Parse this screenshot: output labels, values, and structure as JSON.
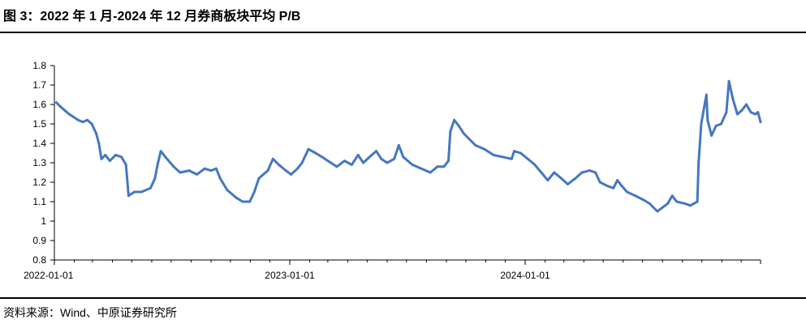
{
  "title": "图 3：2022 年 1 月-2024 年 12 月券商板块平均 P/B",
  "source": "资料来源：Wind、中原证券研究所",
  "colors": {
    "line": "#4677c0",
    "axis": "#000000"
  },
  "chart_data": {
    "type": "line",
    "title": "图 3：2022 年 1 月-2024 年 12 月券商板块平均 P/B",
    "xlabel": "",
    "ylabel": "",
    "ylim": [
      0.8,
      1.8
    ],
    "yticks": [
      "0.8",
      "0.9",
      "1",
      "1.1",
      "1.2",
      "1.3",
      "1.4",
      "1.5",
      "1.6",
      "1.7",
      "1.8"
    ],
    "xticks": [
      {
        "value": "2022-01-01",
        "label": "2022-01-01"
      },
      {
        "value": "2023-01-01",
        "label": "2023-01-01"
      },
      {
        "value": "2024-01-01",
        "label": "2024-01-01"
      }
    ],
    "xlim": [
      "2022-01-01",
      "2024-12-31"
    ],
    "grid": false,
    "series": [
      {
        "name": "",
        "points": [
          [
            "2022-01-04",
            1.61
          ],
          [
            "2022-01-10",
            1.59
          ],
          [
            "2022-01-17",
            1.57
          ],
          [
            "2022-01-24",
            1.55
          ],
          [
            "2022-02-07",
            1.52
          ],
          [
            "2022-02-14",
            1.51
          ],
          [
            "2022-02-21",
            1.52
          ],
          [
            "2022-02-28",
            1.5
          ],
          [
            "2022-03-07",
            1.45
          ],
          [
            "2022-03-11",
            1.4
          ],
          [
            "2022-03-15",
            1.32
          ],
          [
            "2022-03-21",
            1.34
          ],
          [
            "2022-03-28",
            1.31
          ],
          [
            "2022-04-06",
            1.34
          ],
          [
            "2022-04-15",
            1.33
          ],
          [
            "2022-04-22",
            1.29
          ],
          [
            "2022-04-26",
            1.13
          ],
          [
            "2022-05-05",
            1.15
          ],
          [
            "2022-05-16",
            1.15
          ],
          [
            "2022-05-30",
            1.17
          ],
          [
            "2022-06-06",
            1.22
          ],
          [
            "2022-06-10",
            1.29
          ],
          [
            "2022-06-15",
            1.36
          ],
          [
            "2022-06-22",
            1.33
          ],
          [
            "2022-07-05",
            1.28
          ],
          [
            "2022-07-15",
            1.25
          ],
          [
            "2022-07-29",
            1.26
          ],
          [
            "2022-08-10",
            1.24
          ],
          [
            "2022-08-22",
            1.27
          ],
          [
            "2022-09-01",
            1.26
          ],
          [
            "2022-09-09",
            1.27
          ],
          [
            "2022-09-15",
            1.22
          ],
          [
            "2022-09-26",
            1.16
          ],
          [
            "2022-10-10",
            1.12
          ],
          [
            "2022-10-20",
            1.1
          ],
          [
            "2022-10-31",
            1.1
          ],
          [
            "2022-11-07",
            1.15
          ],
          [
            "2022-11-14",
            1.22
          ],
          [
            "2022-11-21",
            1.24
          ],
          [
            "2022-11-28",
            1.26
          ],
          [
            "2022-12-06",
            1.32
          ],
          [
            "2022-12-15",
            1.29
          ],
          [
            "2022-12-26",
            1.26
          ],
          [
            "2023-01-03",
            1.24
          ],
          [
            "2023-01-13",
            1.27
          ],
          [
            "2023-01-20",
            1.3
          ],
          [
            "2023-01-30",
            1.37
          ],
          [
            "2023-02-10",
            1.35
          ],
          [
            "2023-02-20",
            1.33
          ],
          [
            "2023-03-01",
            1.31
          ],
          [
            "2023-03-15",
            1.28
          ],
          [
            "2023-03-27",
            1.31
          ],
          [
            "2023-04-07",
            1.29
          ],
          [
            "2023-04-17",
            1.34
          ],
          [
            "2023-04-25",
            1.3
          ],
          [
            "2023-05-08",
            1.34
          ],
          [
            "2023-05-15",
            1.36
          ],
          [
            "2023-05-23",
            1.32
          ],
          [
            "2023-06-01",
            1.3
          ],
          [
            "2023-06-12",
            1.32
          ],
          [
            "2023-06-19",
            1.39
          ],
          [
            "2023-06-26",
            1.33
          ],
          [
            "2023-07-10",
            1.29
          ],
          [
            "2023-07-24",
            1.27
          ],
          [
            "2023-08-07",
            1.25
          ],
          [
            "2023-08-18",
            1.28
          ],
          [
            "2023-08-28",
            1.28
          ],
          [
            "2023-09-04",
            1.31
          ],
          [
            "2023-09-07",
            1.46
          ],
          [
            "2023-09-13",
            1.52
          ],
          [
            "2023-09-20",
            1.49
          ],
          [
            "2023-09-28",
            1.45
          ],
          [
            "2023-10-16",
            1.39
          ],
          [
            "2023-10-30",
            1.37
          ],
          [
            "2023-11-13",
            1.34
          ],
          [
            "2023-11-27",
            1.33
          ],
          [
            "2023-12-11",
            1.32
          ],
          [
            "2023-12-15",
            1.36
          ],
          [
            "2023-12-25",
            1.35
          ],
          [
            "2024-01-05",
            1.32
          ],
          [
            "2024-01-16",
            1.29
          ],
          [
            "2024-01-26",
            1.25
          ],
          [
            "2024-02-05",
            1.21
          ],
          [
            "2024-02-15",
            1.25
          ],
          [
            "2024-02-26",
            1.22
          ],
          [
            "2024-03-07",
            1.19
          ],
          [
            "2024-03-19",
            1.22
          ],
          [
            "2024-03-29",
            1.25
          ],
          [
            "2024-04-10",
            1.26
          ],
          [
            "2024-04-19",
            1.25
          ],
          [
            "2024-04-26",
            1.2
          ],
          [
            "2024-05-08",
            1.18
          ],
          [
            "2024-05-17",
            1.17
          ],
          [
            "2024-05-23",
            1.21
          ],
          [
            "2024-05-30",
            1.18
          ],
          [
            "2024-06-07",
            1.15
          ],
          [
            "2024-06-20",
            1.13
          ],
          [
            "2024-07-02",
            1.11
          ],
          [
            "2024-07-12",
            1.09
          ],
          [
            "2024-07-24",
            1.05
          ],
          [
            "2024-08-01",
            1.07
          ],
          [
            "2024-08-09",
            1.09
          ],
          [
            "2024-08-16",
            1.13
          ],
          [
            "2024-08-23",
            1.1
          ],
          [
            "2024-09-05",
            1.09
          ],
          [
            "2024-09-13",
            1.08
          ],
          [
            "2024-09-24",
            1.1
          ],
          [
            "2024-09-26",
            1.3
          ],
          [
            "2024-09-30",
            1.5
          ],
          [
            "2024-10-08",
            1.65
          ],
          [
            "2024-10-10",
            1.52
          ],
          [
            "2024-10-16",
            1.44
          ],
          [
            "2024-10-23",
            1.49
          ],
          [
            "2024-10-31",
            1.5
          ],
          [
            "2024-11-08",
            1.56
          ],
          [
            "2024-11-12",
            1.72
          ],
          [
            "2024-11-18",
            1.63
          ],
          [
            "2024-11-25",
            1.55
          ],
          [
            "2024-12-02",
            1.57
          ],
          [
            "2024-12-09",
            1.6
          ],
          [
            "2024-12-16",
            1.56
          ],
          [
            "2024-12-23",
            1.55
          ],
          [
            "2024-12-27",
            1.56
          ],
          [
            "2024-12-31",
            1.51
          ]
        ]
      }
    ]
  }
}
